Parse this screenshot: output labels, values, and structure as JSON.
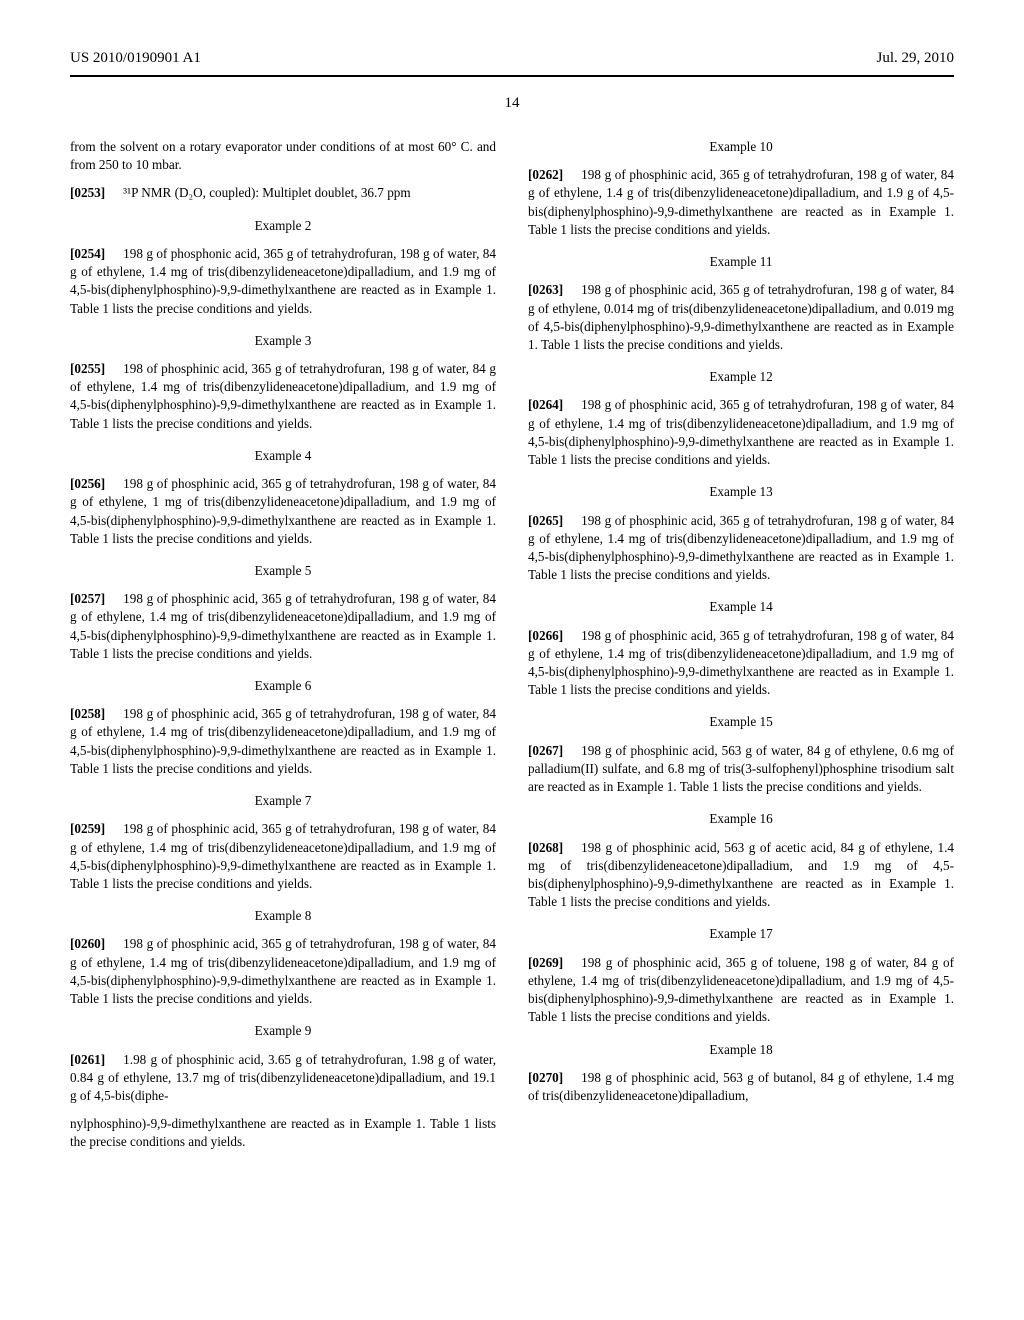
{
  "header": {
    "left": "US 2010/0190901 A1",
    "right": "Jul. 29, 2010"
  },
  "page_number": "14",
  "col1": {
    "p1": "from the solvent on a rotary evaporator under conditions of at most 60° C. and from 250 to 10 mbar.",
    "p2_num": "[0253]",
    "p2": "³¹P NMR (D₂O, coupled): Multiplet doublet, 36.7 ppm",
    "ex2_title": "Example 2",
    "p3_num": "[0254]",
    "p3": "198 g of phosphonic acid, 365 g of tetrahydrofuran, 198 g of water, 84 g of ethylene, 1.4 mg of tris(dibenzylideneacetone)dipalladium, and 1.9 mg of 4,5-bis(diphenylphosphino)-9,9-dimethylxanthene are reacted as in Example 1. Table 1 lists the precise conditions and yields.",
    "ex3_title": "Example 3",
    "p4_num": "[0255]",
    "p4": "198 of phosphinic acid, 365 g of tetrahydrofuran, 198 g of water, 84 g of ethylene, 1.4 mg of tris(dibenzylideneacetone)dipalladium, and 1.9 mg of 4,5-bis(diphenylphosphino)-9,9-dimethylxanthene are reacted as in Example 1. Table 1 lists the precise conditions and yields.",
    "ex4_title": "Example 4",
    "p5_num": "[0256]",
    "p5": "198 g of phosphinic acid, 365 g of tetrahydrofuran, 198 g of water, 84 g of ethylene, 1 mg of tris(dibenzylideneacetone)dipalladium, and 1.9 mg of 4,5-bis(diphenylphosphino)-9,9-dimethylxanthene are reacted as in Example 1. Table 1 lists the precise conditions and yields.",
    "ex5_title": "Example 5",
    "p6_num": "[0257]",
    "p6": "198 g of phosphinic acid, 365 g of tetrahydrofuran, 198 g of water, 84 g of ethylene, 1.4 mg of tris(dibenzylideneacetone)dipalladium, and 1.9 mg of 4,5-bis(diphenylphosphino)-9,9-dimethylxanthene are reacted as in Example 1. Table 1 lists the precise conditions and yields.",
    "ex6_title": "Example 6",
    "p7_num": "[0258]",
    "p7": "198 g of phosphinic acid, 365 g of tetrahydrofuran, 198 g of water, 84 g of ethylene, 1.4 mg of tris(dibenzylideneacetone)dipalladium, and 1.9 mg of 4,5-bis(diphenylphosphino)-9,9-dimethylxanthene are reacted as in Example 1. Table 1 lists the precise conditions and yields.",
    "ex7_title": "Example 7",
    "p8_num": "[0259]",
    "p8": "198 g of phosphinic acid, 365 g of tetrahydrofuran, 198 g of water, 84 g of ethylene, 1.4 mg of tris(dibenzylideneacetone)dipalladium, and 1.9 mg of 4,5-bis(diphenylphosphino)-9,9-dimethylxanthene are reacted as in Example 1. Table 1 lists the precise conditions and yields.",
    "ex8_title": "Example 8",
    "p9_num": "[0260]",
    "p9": "198 g of phosphinic acid, 365 g of tetrahydrofuran, 198 g of water, 84 g of ethylene, 1.4 mg of tris(dibenzylideneacetone)dipalladium, and 1.9 mg of 4,5-bis(diphenylphosphino)-9,9-dimethylxanthene are reacted as in Example 1. Table 1 lists the precise conditions and yields.",
    "ex9_title": "Example 9",
    "p10_num": "[0261]",
    "p10": "1.98 g of phosphinic acid, 3.65 g of tetrahydrofuran, 1.98 g of water, 0.84 g of ethylene, 13.7 mg of tris(dibenzylideneacetone)dipalladium, and 19.1 g of 4,5-bis(diphe-"
  },
  "col2": {
    "p11": "nylphosphino)-9,9-dimethylxanthene are reacted as in Example 1. Table 1 lists the precise conditions and yields.",
    "ex10_title": "Example 10",
    "p12_num": "[0262]",
    "p12": "198 g of phosphinic acid, 365 g of tetrahydrofuran, 198 g of water, 84 g of ethylene, 1.4 g of tris(dibenzylideneacetone)dipalladium, and 1.9 g of 4,5-bis(diphenylphosphino)-9,9-dimethylxanthene are reacted as in Example 1. Table 1 lists the precise conditions and yields.",
    "ex11_title": "Example 11",
    "p13_num": "[0263]",
    "p13": "198 g of phosphinic acid, 365 g of tetrahydrofuran, 198 g of water, 84 g of ethylene, 0.014 mg of tris(dibenzylideneacetone)dipalladium, and 0.019 mg of 4,5-bis(diphenylphosphino)-9,9-dimethylxanthene are reacted as in Example 1. Table 1 lists the precise conditions and yields.",
    "ex12_title": "Example 12",
    "p14_num": "[0264]",
    "p14": "198 g of phosphinic acid, 365 g of tetrahydrofuran, 198 g of water, 84 g of ethylene, 1.4 mg of tris(dibenzylideneacetone)dipalladium, and 1.9 mg of 4,5-bis(diphenylphosphino)-9,9-dimethylxanthene are reacted as in Example 1. Table 1 lists the precise conditions and yields.",
    "ex13_title": "Example 13",
    "p15_num": "[0265]",
    "p15": "198 g of phosphinic acid, 365 g of tetrahydrofuran, 198 g of water, 84 g of ethylene, 1.4 mg of tris(dibenzylideneacetone)dipalladium, and 1.9 mg of 4,5-bis(diphenylphosphino)-9,9-dimethylxanthene are reacted as in Example 1. Table 1 lists the precise conditions and yields.",
    "ex14_title": "Example 14",
    "p16_num": "[0266]",
    "p16": "198 g of phosphinic acid, 365 g of tetrahydrofuran, 198 g of water, 84 g of ethylene, 1.4 mg of tris(dibenzylideneacetone)dipalladium, and 1.9 mg of 4,5-bis(diphenylphosphino)-9,9-dimethylxanthene are reacted as in Example 1. Table 1 lists the precise conditions and yields.",
    "ex15_title": "Example 15",
    "p17_num": "[0267]",
    "p17": "198 g of phosphinic acid, 563 g of water, 84 g of ethylene, 0.6 mg of palladium(II) sulfate, and 6.8 mg of tris(3-sulfophenyl)phosphine trisodium salt are reacted as in Example 1. Table 1 lists the precise conditions and yields.",
    "ex16_title": "Example 16",
    "p18_num": "[0268]",
    "p18": "198 g of phosphinic acid, 563 g of acetic acid, 84 g of ethylene, 1.4 mg of tris(dibenzylideneacetone)dipalladium, and 1.9 mg of 4,5-bis(diphenylphosphino)-9,9-dimethylxanthene are reacted as in Example 1. Table 1 lists the precise conditions and yields.",
    "ex17_title": "Example 17",
    "p19_num": "[0269]",
    "p19": "198 g of phosphinic acid, 365 g of toluene, 198 g of water, 84 g of ethylene, 1.4 mg of tris(dibenzylideneacetone)dipalladium, and 1.9 mg of 4,5-bis(diphenylphosphino)-9,9-dimethylxanthene are reacted as in Example 1. Table 1 lists the precise conditions and yields.",
    "ex18_title": "Example 18",
    "p20_num": "[0270]",
    "p20": "198 g of phosphinic acid, 563 g of butanol, 84 g of ethylene, 1.4 mg of tris(dibenzylideneacetone)dipalladium,"
  }
}
